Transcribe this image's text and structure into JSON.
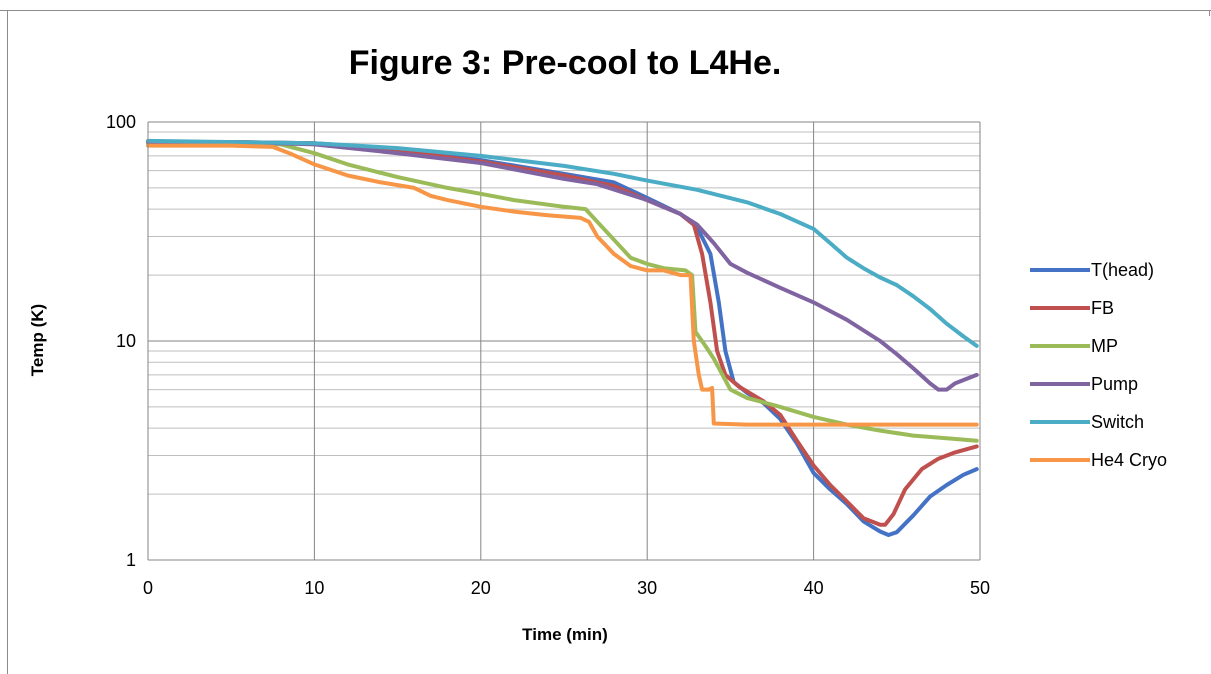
{
  "chart_data": {
    "type": "line",
    "title": "Figure 3: Pre-cool to L4He.",
    "xlabel": "Time (min)",
    "ylabel": "Temp (K)",
    "xlim": [
      0,
      50
    ],
    "ylim": [
      1,
      100
    ],
    "y_scale": "log",
    "x_ticks": [
      "0",
      "10",
      "20",
      "30",
      "40",
      "50"
    ],
    "y_ticks": [
      "1",
      "10",
      "100"
    ],
    "grid": true,
    "legend_position": "right",
    "series": [
      {
        "name": "T(head)",
        "color": "#4472C4",
        "points": [
          [
            0,
            81
          ],
          [
            5,
            81
          ],
          [
            10,
            80
          ],
          [
            15,
            75
          ],
          [
            20,
            67
          ],
          [
            25,
            58
          ],
          [
            28,
            53
          ],
          [
            30,
            45
          ],
          [
            32,
            38
          ],
          [
            33,
            33
          ],
          [
            33.8,
            25
          ],
          [
            34.3,
            15
          ],
          [
            34.7,
            9
          ],
          [
            35.2,
            6.5
          ],
          [
            36,
            5.8
          ],
          [
            37,
            5.2
          ],
          [
            38,
            4.4
          ],
          [
            39,
            3.4
          ],
          [
            40,
            2.5
          ],
          [
            41,
            2.1
          ],
          [
            42,
            1.8
          ],
          [
            43,
            1.5
          ],
          [
            44,
            1.35
          ],
          [
            44.5,
            1.3
          ],
          [
            45,
            1.34
          ],
          [
            46,
            1.6
          ],
          [
            47,
            1.95
          ],
          [
            48,
            2.2
          ],
          [
            49,
            2.45
          ],
          [
            49.8,
            2.6
          ]
        ]
      },
      {
        "name": "FB",
        "color": "#C0504D",
        "points": [
          [
            0,
            81
          ],
          [
            5,
            81
          ],
          [
            10,
            80
          ],
          [
            15,
            74
          ],
          [
            20,
            66
          ],
          [
            25,
            57
          ],
          [
            28,
            51
          ],
          [
            30,
            44
          ],
          [
            32,
            38
          ],
          [
            32.8,
            34
          ],
          [
            33.3,
            25
          ],
          [
            33.8,
            15
          ],
          [
            34.2,
            9
          ],
          [
            34.7,
            7
          ],
          [
            35.5,
            6.2
          ],
          [
            37,
            5.3
          ],
          [
            38,
            4.6
          ],
          [
            39,
            3.5
          ],
          [
            40,
            2.7
          ],
          [
            41,
            2.2
          ],
          [
            42,
            1.85
          ],
          [
            43,
            1.55
          ],
          [
            44,
            1.45
          ],
          [
            44.3,
            1.45
          ],
          [
            44.8,
            1.62
          ],
          [
            45.5,
            2.1
          ],
          [
            46.5,
            2.6
          ],
          [
            47.5,
            2.9
          ],
          [
            48.5,
            3.1
          ],
          [
            49.8,
            3.3
          ]
        ]
      },
      {
        "name": "MP",
        "color": "#9BBB59",
        "points": [
          [
            0,
            80
          ],
          [
            5,
            80
          ],
          [
            8,
            79
          ],
          [
            10,
            72
          ],
          [
            12,
            64
          ],
          [
            15,
            56
          ],
          [
            18,
            50
          ],
          [
            20,
            47
          ],
          [
            22,
            44
          ],
          [
            25,
            41
          ],
          [
            26.3,
            40
          ],
          [
            27,
            35
          ],
          [
            28,
            29
          ],
          [
            29,
            24
          ],
          [
            30,
            22.5
          ],
          [
            31,
            21.5
          ],
          [
            32.3,
            21
          ],
          [
            32.7,
            20
          ],
          [
            32.9,
            11
          ],
          [
            33.5,
            9.5
          ],
          [
            34,
            8.3
          ],
          [
            35,
            6
          ],
          [
            36,
            5.5
          ],
          [
            38,
            5
          ],
          [
            40,
            4.5
          ],
          [
            42,
            4.15
          ],
          [
            44,
            3.9
          ],
          [
            46,
            3.7
          ],
          [
            48,
            3.6
          ],
          [
            49.8,
            3.5
          ]
        ]
      },
      {
        "name": "Pump",
        "color": "#8064A2",
        "points": [
          [
            0,
            81
          ],
          [
            5,
            81
          ],
          [
            10,
            79
          ],
          [
            15,
            72
          ],
          [
            20,
            65
          ],
          [
            25,
            55
          ],
          [
            27,
            52
          ],
          [
            30,
            44
          ],
          [
            32,
            38
          ],
          [
            33,
            34
          ],
          [
            34,
            28
          ],
          [
            35,
            22.5
          ],
          [
            36,
            20.5
          ],
          [
            38,
            17.5
          ],
          [
            40,
            15
          ],
          [
            42,
            12.5
          ],
          [
            44,
            10
          ],
          [
            45,
            8.7
          ],
          [
            46,
            7.5
          ],
          [
            47,
            6.4
          ],
          [
            47.5,
            6
          ],
          [
            48,
            6
          ],
          [
            48.5,
            6.4
          ],
          [
            49.8,
            7
          ]
        ]
      },
      {
        "name": "Switch",
        "color": "#4BACC6",
        "points": [
          [
            0,
            82
          ],
          [
            10,
            80
          ],
          [
            15,
            76
          ],
          [
            20,
            70
          ],
          [
            25,
            63
          ],
          [
            28,
            58
          ],
          [
            30,
            54
          ],
          [
            33,
            49
          ],
          [
            36,
            43
          ],
          [
            38,
            38
          ],
          [
            40,
            32.5
          ],
          [
            41,
            28
          ],
          [
            42,
            24
          ],
          [
            43,
            21.5
          ],
          [
            44,
            19.5
          ],
          [
            45,
            18
          ],
          [
            46,
            16
          ],
          [
            47,
            14
          ],
          [
            48,
            12
          ],
          [
            49,
            10.5
          ],
          [
            49.8,
            9.5
          ]
        ]
      },
      {
        "name": "He4 Cryo",
        "color": "#F79646",
        "points": [
          [
            0,
            78
          ],
          [
            5,
            78
          ],
          [
            7.5,
            77
          ],
          [
            8.5,
            72
          ],
          [
            10,
            64
          ],
          [
            12,
            57
          ],
          [
            14,
            53
          ],
          [
            16,
            50
          ],
          [
            17,
            46
          ],
          [
            18,
            44
          ],
          [
            20,
            41
          ],
          [
            22,
            39
          ],
          [
            24,
            37.5
          ],
          [
            26,
            36.5
          ],
          [
            26.5,
            35
          ],
          [
            27,
            30
          ],
          [
            28,
            25
          ],
          [
            29,
            22
          ],
          [
            30,
            21
          ],
          [
            31,
            21
          ],
          [
            32,
            20
          ],
          [
            32.6,
            20
          ],
          [
            32.8,
            10
          ],
          [
            33.1,
            7
          ],
          [
            33.3,
            6
          ],
          [
            33.7,
            6
          ],
          [
            33.9,
            6.1
          ],
          [
            34,
            4.2
          ],
          [
            36,
            4.15
          ],
          [
            40,
            4.15
          ],
          [
            45,
            4.15
          ],
          [
            49.8,
            4.15
          ]
        ]
      }
    ]
  }
}
